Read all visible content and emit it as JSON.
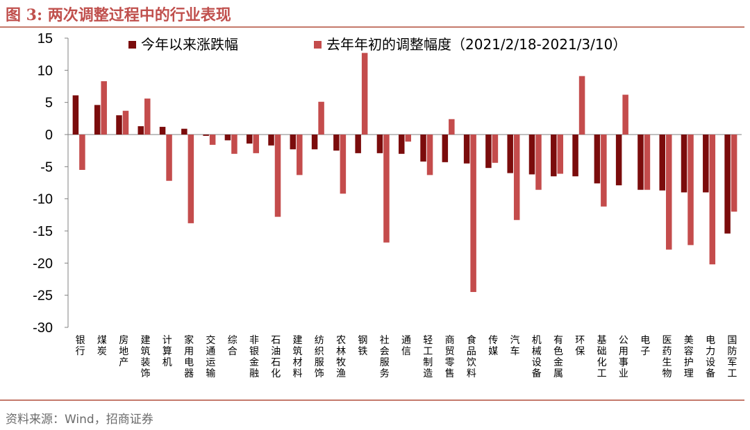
{
  "header": {
    "title": "图 3:  两次调整过程中的行业表现"
  },
  "footer": {
    "source": "资料来源：Wind，招商证券"
  },
  "chart_data": {
    "type": "bar",
    "title": "",
    "xlabel": "",
    "ylabel": "",
    "ylim": [
      -30,
      15
    ],
    "yticks": [
      15,
      10,
      5,
      0,
      -5,
      -10,
      -15,
      -20,
      -25,
      -30
    ],
    "legend_position": "top",
    "categories": [
      "银行",
      "煤炭",
      "房地产",
      "建筑装饰",
      "计算机",
      "家用电器",
      "交通运输",
      "综合",
      "非银金融",
      "石油石化",
      "建筑材料",
      "纺织服饰",
      "农林牧渔",
      "钢铁",
      "社会服务",
      "通信",
      "轻工制造",
      "商贸零售",
      "食品饮料",
      "传媒",
      "汽车",
      "机械设备",
      "有色金属",
      "环保",
      "基础化工",
      "公用事业",
      "电子",
      "医药生物",
      "美容护理",
      "电力设备",
      "国防军工"
    ],
    "series": [
      {
        "name": "今年以来涨跌幅",
        "color": "#7b0c0c",
        "values": [
          6.1,
          4.6,
          3.0,
          1.3,
          1.2,
          0.9,
          -0.2,
          -0.9,
          -1.4,
          -1.7,
          -2.3,
          -2.3,
          -2.5,
          -2.9,
          -2.9,
          -3.0,
          -4.2,
          -4.3,
          -4.5,
          -5.2,
          -6.0,
          -6.2,
          -6.5,
          -6.5,
          -7.6,
          -7.9,
          -8.6,
          -8.7,
          -9.0,
          -9.0,
          -15.4
        ]
      },
      {
        "name": "去年年初的调整幅度（2021/2/18-2021/3/10）",
        "color": "#c44c4c",
        "values": [
          -5.5,
          8.3,
          3.7,
          5.6,
          -7.2,
          -13.8,
          -1.6,
          -3.0,
          -2.9,
          -12.8,
          -6.3,
          5.1,
          -9.2,
          12.7,
          -16.8,
          -1.1,
          -6.3,
          2.4,
          -24.5,
          -4.4,
          -13.3,
          -8.6,
          -6.1,
          9.1,
          -11.2,
          6.2,
          -8.6,
          -17.9,
          -17.2,
          -20.2,
          -12.0
        ]
      }
    ]
  }
}
